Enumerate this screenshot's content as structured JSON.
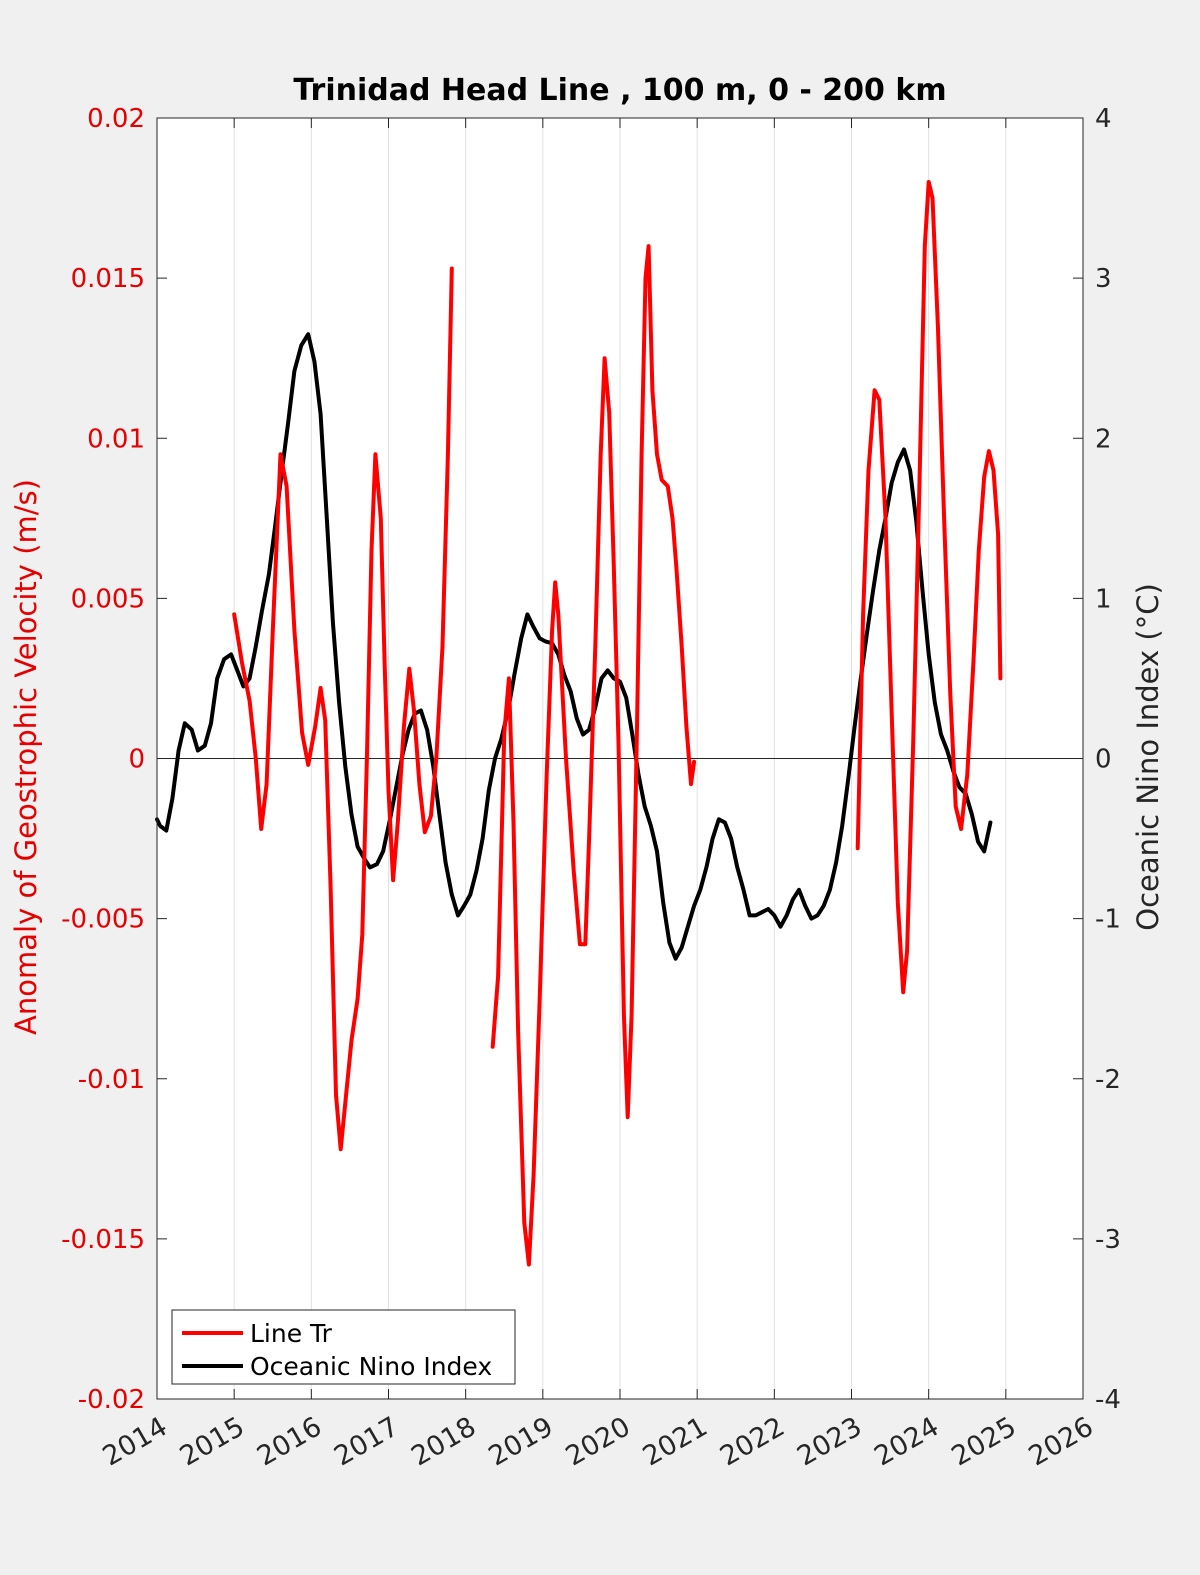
{
  "chart_data": {
    "type": "line",
    "title": "Trinidad Head Line , 100 m, 0 - 200 km",
    "xlabel": "",
    "ylabel_left": "Anomaly of Geostrophic Velocity (m/s)",
    "ylabel_right": "Oceanic Nino Index (°C)",
    "xlim": [
      2014,
      2026
    ],
    "ylim_left": [
      -0.02,
      0.02
    ],
    "ylim_right": [
      -4,
      4
    ],
    "x_ticks": [
      "2014",
      "2015",
      "2016",
      "2017",
      "2018",
      "2019",
      "2020",
      "2021",
      "2022",
      "2023",
      "2024",
      "2025",
      "2026"
    ],
    "y_ticks_left": [
      "0.02",
      "0.015",
      "0.01",
      "0.005",
      "0",
      "-0.005",
      "-0.01",
      "-0.015",
      "-0.02"
    ],
    "y_ticks_right": [
      "4",
      "3",
      "2",
      "1",
      "0",
      "-1",
      "-2",
      "-3",
      "-4"
    ],
    "grid": "vertical",
    "zero_line": true,
    "legend_position": "bottom-left",
    "colors": {
      "left_axis": "#e60000",
      "line_tr": "#ff0000",
      "oni": "#000000",
      "axis": "#262626"
    },
    "series": [
      {
        "name": "Line Tr",
        "axis": "left",
        "color": "#ff0000",
        "segments": [
          [
            [
              2015.0,
              0.0045
            ],
            [
              2015.1,
              0.003
            ],
            [
              2015.2,
              0.0018
            ],
            [
              2015.28,
              0.0
            ],
            [
              2015.35,
              -0.0022
            ],
            [
              2015.42,
              -0.0008
            ],
            [
              2015.5,
              0.004
            ],
            [
              2015.6,
              0.0095
            ],
            [
              2015.68,
              0.0085
            ],
            [
              2015.78,
              0.004
            ],
            [
              2015.88,
              0.0008
            ],
            [
              2015.96,
              -0.0002
            ],
            [
              2016.05,
              0.001
            ],
            [
              2016.12,
              0.0022
            ],
            [
              2016.18,
              0.0012
            ],
            [
              2016.25,
              -0.004
            ],
            [
              2016.32,
              -0.0105
            ],
            [
              2016.38,
              -0.0122
            ],
            [
              2016.45,
              -0.0105
            ],
            [
              2016.52,
              -0.0088
            ],
            [
              2016.6,
              -0.0075
            ],
            [
              2016.66,
              -0.0055
            ],
            [
              2016.72,
              0.0
            ],
            [
              2016.78,
              0.0065
            ],
            [
              2016.83,
              0.0095
            ],
            [
              2016.9,
              0.0075
            ],
            [
              2016.95,
              0.003
            ],
            [
              2017.0,
              -0.001
            ],
            [
              2017.06,
              -0.0038
            ],
            [
              2017.12,
              -0.002
            ],
            [
              2017.2,
              0.001
            ],
            [
              2017.27,
              0.0028
            ],
            [
              2017.33,
              0.0015
            ],
            [
              2017.4,
              -0.0008
            ],
            [
              2017.47,
              -0.0023
            ],
            [
              2017.55,
              -0.0018
            ],
            [
              2017.62,
              0.0
            ],
            [
              2017.7,
              0.0035
            ],
            [
              2017.77,
              0.0095
            ],
            [
              2017.82,
              0.0153
            ]
          ],
          [
            [
              2018.35,
              -0.009
            ],
            [
              2018.42,
              -0.0068
            ],
            [
              2018.5,
              0.0008
            ],
            [
              2018.56,
              0.0025
            ],
            [
              2018.62,
              -0.002
            ],
            [
              2018.68,
              -0.0085
            ],
            [
              2018.76,
              -0.0145
            ],
            [
              2018.82,
              -0.0158
            ],
            [
              2018.88,
              -0.013
            ],
            [
              2018.96,
              -0.0075
            ],
            [
              2019.05,
              -0.0005
            ],
            [
              2019.12,
              0.004
            ],
            [
              2019.16,
              0.0055
            ],
            [
              2019.2,
              0.0045
            ],
            [
              2019.3,
              0.0
            ],
            [
              2019.4,
              -0.0035
            ],
            [
              2019.48,
              -0.0058
            ],
            [
              2019.55,
              -0.0058
            ],
            [
              2019.6,
              -0.0025
            ],
            [
              2019.68,
              0.0035
            ],
            [
              2019.75,
              0.0095
            ],
            [
              2019.8,
              0.0125
            ],
            [
              2019.86,
              0.0108
            ],
            [
              2019.92,
              0.006
            ],
            [
              2019.98,
              0.0005
            ],
            [
              2020.05,
              -0.008
            ],
            [
              2020.1,
              -0.0112
            ],
            [
              2020.15,
              -0.008
            ],
            [
              2020.22,
              0.001
            ],
            [
              2020.28,
              0.0095
            ],
            [
              2020.33,
              0.015
            ],
            [
              2020.37,
              0.016
            ],
            [
              2020.42,
              0.0115
            ],
            [
              2020.48,
              0.0095
            ],
            [
              2020.54,
              0.0087
            ],
            [
              2020.62,
              0.0085
            ],
            [
              2020.68,
              0.0075
            ],
            [
              2020.73,
              0.006
            ],
            [
              2020.8,
              0.0035
            ],
            [
              2020.86,
              0.001
            ],
            [
              2020.92,
              -0.0008
            ],
            [
              2020.96,
              -0.0001
            ]
          ],
          [
            [
              2023.08,
              -0.0028
            ],
            [
              2023.15,
              0.0045
            ],
            [
              2023.22,
              0.009
            ],
            [
              2023.3,
              0.0115
            ],
            [
              2023.36,
              0.0112
            ],
            [
              2023.44,
              0.0075
            ],
            [
              2023.52,
              0.0015
            ],
            [
              2023.6,
              -0.0045
            ],
            [
              2023.67,
              -0.0073
            ],
            [
              2023.72,
              -0.006
            ],
            [
              2023.8,
              0.0005
            ],
            [
              2023.88,
              0.0085
            ],
            [
              2023.95,
              0.016
            ],
            [
              2024.0,
              0.018
            ],
            [
              2024.05,
              0.0175
            ],
            [
              2024.12,
              0.0135
            ],
            [
              2024.2,
              0.0075
            ],
            [
              2024.28,
              0.002
            ],
            [
              2024.35,
              -0.0015
            ],
            [
              2024.42,
              -0.0022
            ],
            [
              2024.5,
              -0.0005
            ],
            [
              2024.58,
              0.003
            ],
            [
              2024.65,
              0.0065
            ],
            [
              2024.72,
              0.0088
            ],
            [
              2024.78,
              0.0096
            ],
            [
              2024.84,
              0.009
            ],
            [
              2024.9,
              0.007
            ],
            [
              2024.93,
              0.0025
            ]
          ]
        ]
      },
      {
        "name": "Oceanic Nino Index",
        "axis": "right",
        "color": "#000000",
        "segments": [
          [
            [
              2014.0,
              -0.38
            ],
            [
              2014.04,
              -0.42
            ],
            [
              2014.12,
              -0.45
            ],
            [
              2014.2,
              -0.25
            ],
            [
              2014.28,
              0.05
            ],
            [
              2014.36,
              0.22
            ],
            [
              2014.45,
              0.18
            ],
            [
              2014.53,
              0.05
            ],
            [
              2014.62,
              0.08
            ],
            [
              2014.7,
              0.22
            ],
            [
              2014.78,
              0.5
            ],
            [
              2014.87,
              0.62
            ],
            [
              2014.96,
              0.65
            ],
            [
              2015.04,
              0.55
            ],
            [
              2015.12,
              0.45
            ],
            [
              2015.2,
              0.5
            ],
            [
              2015.28,
              0.7
            ],
            [
              2015.36,
              0.92
            ],
            [
              2015.45,
              1.15
            ],
            [
              2015.53,
              1.45
            ],
            [
              2015.62,
              1.8
            ],
            [
              2015.7,
              2.1
            ],
            [
              2015.78,
              2.42
            ],
            [
              2015.87,
              2.58
            ],
            [
              2015.96,
              2.65
            ],
            [
              2016.04,
              2.48
            ],
            [
              2016.12,
              2.15
            ],
            [
              2016.2,
              1.5
            ],
            [
              2016.28,
              0.85
            ],
            [
              2016.36,
              0.35
            ],
            [
              2016.44,
              -0.05
            ],
            [
              2016.52,
              -0.35
            ],
            [
              2016.6,
              -0.55
            ],
            [
              2016.68,
              -0.62
            ],
            [
              2016.76,
              -0.68
            ],
            [
              2016.85,
              -0.66
            ],
            [
              2016.93,
              -0.58
            ],
            [
              2017.02,
              -0.38
            ],
            [
              2017.1,
              -0.18
            ],
            [
              2017.18,
              0.02
            ],
            [
              2017.26,
              0.18
            ],
            [
              2017.34,
              0.28
            ],
            [
              2017.42,
              0.3
            ],
            [
              2017.5,
              0.18
            ],
            [
              2017.58,
              -0.05
            ],
            [
              2017.66,
              -0.35
            ],
            [
              2017.74,
              -0.65
            ],
            [
              2017.82,
              -0.85
            ],
            [
              2017.9,
              -0.98
            ],
            [
              2017.98,
              -0.92
            ],
            [
              2018.06,
              -0.85
            ],
            [
              2018.14,
              -0.7
            ],
            [
              2018.22,
              -0.5
            ],
            [
              2018.3,
              -0.2
            ],
            [
              2018.38,
              0.0
            ],
            [
              2018.46,
              0.12
            ],
            [
              2018.55,
              0.3
            ],
            [
              2018.63,
              0.52
            ],
            [
              2018.72,
              0.75
            ],
            [
              2018.8,
              0.9
            ],
            [
              2018.88,
              0.82
            ],
            [
              2018.96,
              0.75
            ],
            [
              2019.04,
              0.73
            ],
            [
              2019.12,
              0.72
            ],
            [
              2019.2,
              0.65
            ],
            [
              2019.28,
              0.52
            ],
            [
              2019.36,
              0.42
            ],
            [
              2019.44,
              0.25
            ],
            [
              2019.52,
              0.15
            ],
            [
              2019.6,
              0.18
            ],
            [
              2019.68,
              0.32
            ],
            [
              2019.76,
              0.5
            ],
            [
              2019.84,
              0.55
            ],
            [
              2019.92,
              0.5
            ],
            [
              2020.0,
              0.48
            ],
            [
              2020.08,
              0.38
            ],
            [
              2020.16,
              0.15
            ],
            [
              2020.24,
              -0.1
            ],
            [
              2020.32,
              -0.3
            ],
            [
              2020.4,
              -0.42
            ],
            [
              2020.48,
              -0.58
            ],
            [
              2020.56,
              -0.9
            ],
            [
              2020.64,
              -1.15
            ],
            [
              2020.72,
              -1.25
            ],
            [
              2020.8,
              -1.18
            ],
            [
              2020.88,
              -1.05
            ],
            [
              2020.96,
              -0.92
            ],
            [
              2021.04,
              -0.82
            ],
            [
              2021.12,
              -0.68
            ],
            [
              2021.2,
              -0.5
            ],
            [
              2021.28,
              -0.38
            ],
            [
              2021.36,
              -0.4
            ],
            [
              2021.44,
              -0.5
            ],
            [
              2021.52,
              -0.68
            ],
            [
              2021.6,
              -0.82
            ],
            [
              2021.68,
              -0.98
            ],
            [
              2021.76,
              -0.98
            ],
            [
              2021.84,
              -0.96
            ],
            [
              2021.92,
              -0.94
            ],
            [
              2022.0,
              -0.98
            ],
            [
              2022.08,
              -1.05
            ],
            [
              2022.16,
              -0.98
            ],
            [
              2022.24,
              -0.88
            ],
            [
              2022.32,
              -0.82
            ],
            [
              2022.4,
              -0.92
            ],
            [
              2022.48,
              -1.0
            ],
            [
              2022.56,
              -0.98
            ],
            [
              2022.64,
              -0.92
            ],
            [
              2022.72,
              -0.82
            ],
            [
              2022.8,
              -0.65
            ],
            [
              2022.88,
              -0.42
            ],
            [
              2022.96,
              -0.12
            ],
            [
              2023.04,
              0.2
            ],
            [
              2023.12,
              0.5
            ],
            [
              2023.2,
              0.78
            ],
            [
              2023.28,
              1.05
            ],
            [
              2023.36,
              1.3
            ],
            [
              2023.44,
              1.5
            ],
            [
              2023.52,
              1.72
            ],
            [
              2023.6,
              1.85
            ],
            [
              2023.68,
              1.93
            ],
            [
              2023.76,
              1.8
            ],
            [
              2023.84,
              1.48
            ],
            [
              2023.92,
              1.05
            ],
            [
              2024.0,
              0.65
            ],
            [
              2024.08,
              0.35
            ],
            [
              2024.16,
              0.15
            ],
            [
              2024.24,
              0.05
            ],
            [
              2024.32,
              -0.08
            ],
            [
              2024.4,
              -0.18
            ],
            [
              2024.48,
              -0.22
            ],
            [
              2024.56,
              -0.35
            ],
            [
              2024.64,
              -0.52
            ],
            [
              2024.72,
              -0.58
            ],
            [
              2024.8,
              -0.4
            ]
          ]
        ]
      }
    ]
  }
}
